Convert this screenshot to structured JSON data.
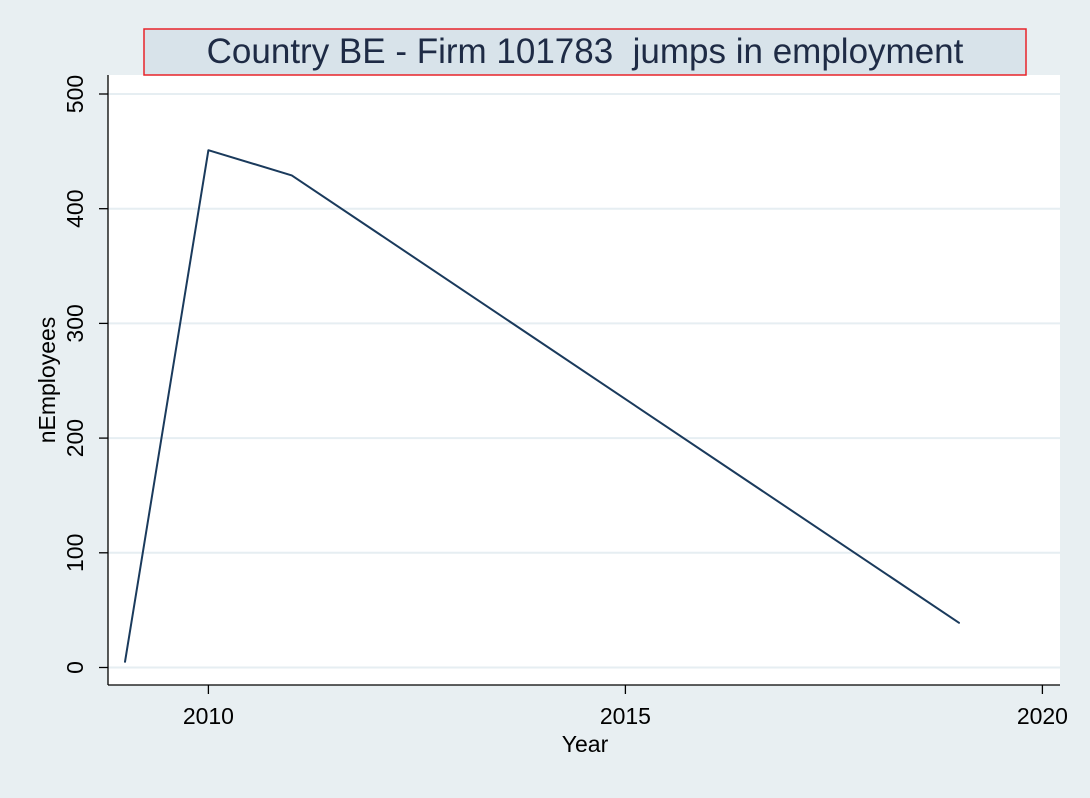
{
  "chart_data": {
    "type": "line",
    "title": "Country BE - Firm 101783  jumps in employment",
    "xlabel": "Year",
    "ylabel": "nEmployees",
    "xlim": [
      2009,
      2020
    ],
    "ylim": [
      0,
      500
    ],
    "xticks": [
      2010,
      2015,
      2020
    ],
    "yticks": [
      0,
      100,
      200,
      300,
      400,
      500
    ],
    "grid": "horizontal",
    "legend": "none",
    "colors": {
      "background": "#e8eff2",
      "plot_area": "#ffffff",
      "line": "#1a3a5c",
      "grid": "#e6eef2",
      "title_box_fill": "#d8e3ea",
      "title_box_border": "#e8242a",
      "axis": "#000000"
    },
    "series": [
      {
        "x": [
          2009,
          2010,
          2011,
          2019
        ],
        "values": [
          5,
          451,
          429,
          39
        ]
      }
    ]
  }
}
